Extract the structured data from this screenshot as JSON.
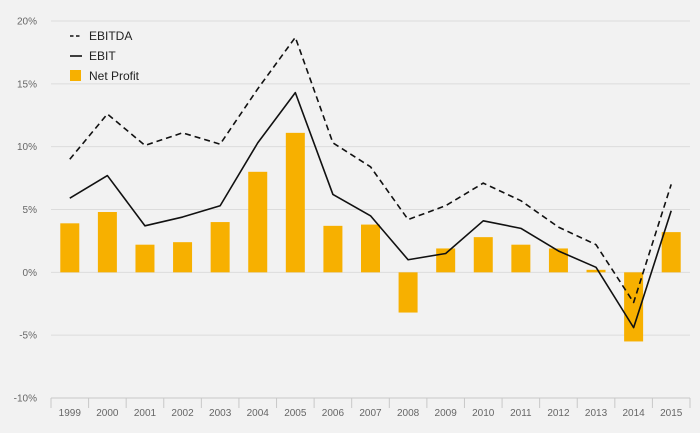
{
  "chart_data": {
    "type": "bar",
    "title": "",
    "xlabel": "",
    "ylabel": "",
    "ylim": [
      -10,
      20
    ],
    "yticks": [
      -10,
      -5,
      0,
      5,
      10,
      15,
      20
    ],
    "ytick_labels": [
      "-10%",
      "-5%",
      "0%",
      "5%",
      "10%",
      "15%",
      "20%"
    ],
    "grid": true,
    "legend_position": "top-left",
    "categories": [
      "1999",
      "2000",
      "2001",
      "2002",
      "2003",
      "2004",
      "2005",
      "2006",
      "2007",
      "2008",
      "2009",
      "2010",
      "2011",
      "2012",
      "2013",
      "2014",
      "2015"
    ],
    "series": [
      {
        "name": "EBITDA",
        "type": "line",
        "line_style": "dashed",
        "color": "#111111",
        "values": [
          9.0,
          12.6,
          10.1,
          11.1,
          10.2,
          14.6,
          18.7,
          10.3,
          8.4,
          4.2,
          5.3,
          7.1,
          5.7,
          3.6,
          2.2,
          -2.4,
          7.0
        ]
      },
      {
        "name": "EBIT",
        "type": "line",
        "line_style": "solid",
        "color": "#111111",
        "values": [
          5.9,
          7.7,
          3.7,
          4.4,
          5.3,
          10.3,
          14.3,
          6.2,
          4.5,
          1.0,
          1.5,
          4.1,
          3.5,
          1.7,
          0.4,
          -4.4,
          4.9
        ]
      },
      {
        "name": "Net Profit",
        "type": "bar",
        "color": "#f7b000",
        "values": [
          3.9,
          4.8,
          2.2,
          2.4,
          4.0,
          8.0,
          11.1,
          3.7,
          3.8,
          -3.2,
          1.9,
          2.8,
          2.2,
          1.9,
          0.2,
          -5.5,
          3.2
        ]
      }
    ]
  }
}
